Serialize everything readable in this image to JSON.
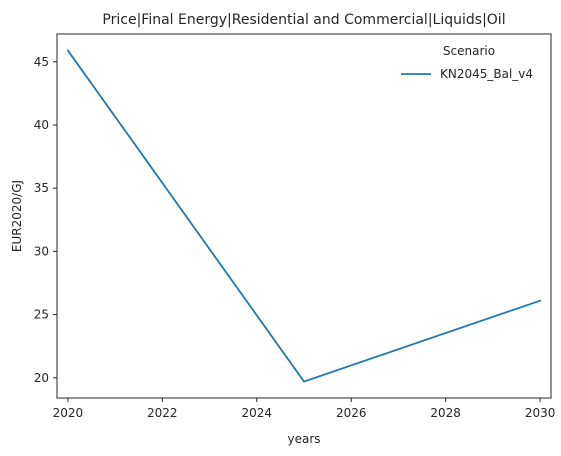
{
  "chart_data": {
    "type": "line",
    "title": "Price|Final Energy|Residential and Commercial|Liquids|Oil",
    "xlabel": "years",
    "ylabel": "EUR2020/GJ",
    "x": [
      2020,
      2025,
      2030
    ],
    "series": [
      {
        "name": "KN2045_Bal_v4",
        "values": [
          45.9,
          19.7,
          26.1
        ],
        "color": "#1f77b4"
      }
    ],
    "xlim": [
      2019.77,
      2030.23
    ],
    "ylim": [
      18.4,
      47.2
    ],
    "xticks": [
      2020,
      2022,
      2024,
      2026,
      2028,
      2030
    ],
    "yticks": [
      20,
      25,
      30,
      35,
      40,
      45
    ],
    "grid": false,
    "legend": {
      "title": "Scenario",
      "placement": "top-right"
    }
  }
}
